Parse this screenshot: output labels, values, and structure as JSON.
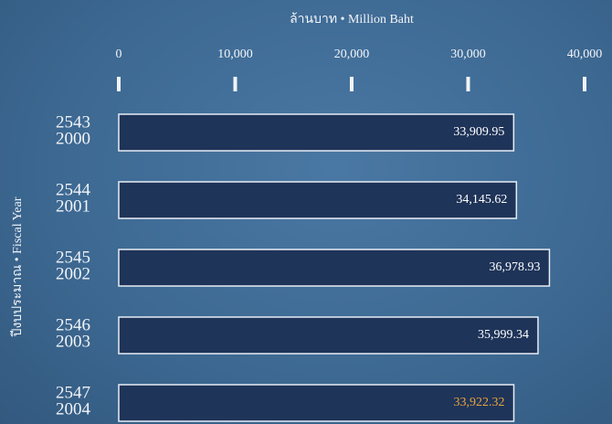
{
  "chart_data": {
    "type": "barh",
    "xlabel": "ล้านบาท • Million Baht",
    "ylabel": "ปีงบประมาณ • Fiscal Year",
    "categories": [
      [
        "2543",
        "2000"
      ],
      [
        "2544",
        "2001"
      ],
      [
        "2545",
        "2002"
      ],
      [
        "2546",
        "2003"
      ],
      [
        "2547",
        "2004"
      ]
    ],
    "values": [
      33909.95,
      34145.62,
      36978.93,
      35999.34,
      33922.32
    ],
    "value_labels": [
      "33,909.95",
      "34,145.62",
      "36,978.93",
      "35,999.34",
      "33,922.32"
    ],
    "value_label_colors": [
      "#ffffff",
      "#ffffff",
      "#ffffff",
      "#ffffff",
      "#e8a53c"
    ],
    "color": "#1f3459",
    "xlim": [
      0,
      40000
    ],
    "xticks": [
      0,
      {
        "value": 10000,
        "label": "10,000"
      },
      {
        "value": 20000,
        "label": "20,000"
      },
      {
        "value": 30000,
        "label": "30,000"
      },
      {
        "value": 40000,
        "label": "40,000"
      }
    ]
  }
}
